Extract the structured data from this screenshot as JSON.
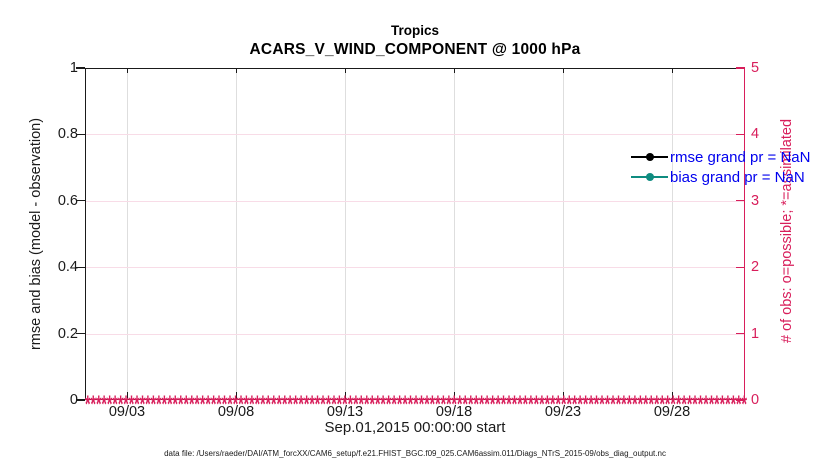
{
  "figure": {
    "title_line1": "Tropics",
    "title_line2": "ACARS_V_WIND_COMPONENT @ 1000 hPa",
    "footer": "data file: /Users/raeder/DAI/ATM_forcXX/CAM6_setup/f.e21.FHIST_BGC.f09_025.CAM6assim.011/Diags_NTrS_2015-09/obs_diag_output.nc"
  },
  "axes": {
    "x": {
      "label": "Sep.01,2015 00:00:00 start",
      "tick_labels": [
        "09/03",
        "09/08",
        "09/13",
        "09/18",
        "09/23",
        "09/28"
      ]
    },
    "y_left": {
      "label": "rmse and bias (model - observation)",
      "tick_labels": [
        "0",
        "0.2",
        "0.4",
        "0.6",
        "0.8",
        "1"
      ]
    },
    "y_right": {
      "label": "# of obs: o=possible; *=assimilated",
      "tick_labels": [
        "0",
        "1",
        "2",
        "3",
        "4",
        "5"
      ]
    }
  },
  "legend": {
    "items": [
      {
        "label": "rmse grand pr = NaN",
        "line_color": "#000000",
        "marker": "filled-circle"
      },
      {
        "label": "bias grand pr = NaN",
        "line_color": "#0f8c80",
        "marker": "filled-circle"
      }
    ]
  },
  "colors": {
    "obs_axis_pink": "#d81e5b",
    "bias_teal": "#0f8c80",
    "rmse_black": "#000000",
    "legend_text_blue": "#0000ee",
    "grid_vertical_gray": "#dedede",
    "grid_horizontal_pink": "#f8dce7"
  },
  "chart_data": {
    "type": "line",
    "title": "Tropics",
    "subtitle": "ACARS_V_WIND_COMPONENT @ 1000 hPa",
    "xlabel": "Sep.01,2015 00:00:00 start",
    "ylabel_left": "rmse and bias (model - observation)",
    "ylabel_right": "# of obs: o=possible; *=assimilated",
    "x_tick_labels": [
      "09/03",
      "09/08",
      "09/13",
      "09/18",
      "09/23",
      "09/28"
    ],
    "x_range": [
      "2015-09-01 00:00:00",
      "2015-10-01"
    ],
    "ylim_left": [
      0,
      1
    ],
    "yticks_left": [
      0,
      0.2,
      0.4,
      0.6,
      0.8,
      1
    ],
    "ylim_right": [
      0,
      5
    ],
    "yticks_right": [
      0,
      1,
      2,
      3,
      4,
      5
    ],
    "grid": true,
    "legend_position": "upper right, inside plot, no box",
    "series": [
      {
        "name": "rmse grand pr = NaN",
        "type": "line+marker",
        "color": "#000000",
        "values": "NaN - no curve plotted"
      },
      {
        "name": "bias grand pr = NaN",
        "type": "line+marker",
        "color": "#0f8c80",
        "values": "NaN - no curve plotted"
      },
      {
        "name": "# of obs assimilated",
        "type": "scatter",
        "marker": "*",
        "color": "#d81e5b",
        "n_points": 121,
        "constant_value": 0,
        "note": "dense overlapping * markers along y=0 across entire x-range"
      }
    ]
  }
}
